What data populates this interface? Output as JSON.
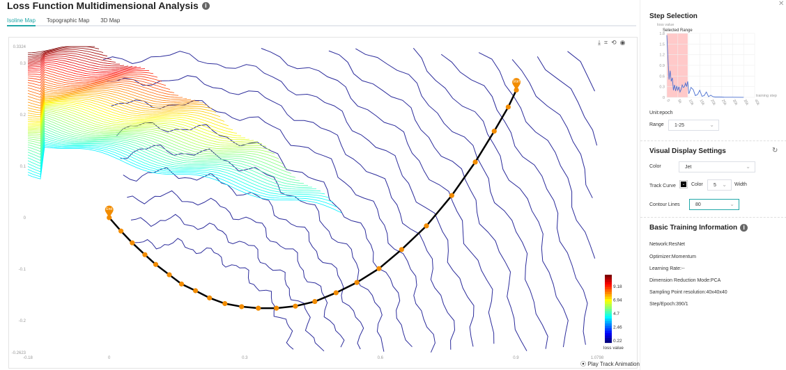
{
  "title": "Loss Function Multidimensional Analysis",
  "tabs": [
    {
      "label": "Isoline Map",
      "active": true
    },
    {
      "label": "Topographic Map"
    },
    {
      "label": "3D Map"
    }
  ],
  "toolbar_icons": [
    "download-icon",
    "crop-icon",
    "restore-icon",
    "eye-icon"
  ],
  "play_label": "Play Track Animation",
  "colors": {
    "accent": "#20a7a8",
    "contour_low": "#2828a0",
    "track": "#000000",
    "marker": "#f28c00",
    "selected_range": "#ffc9c9"
  },
  "chart_data": {
    "type": "contour",
    "xlim": [
      -0.18,
      1.0798
    ],
    "ylim": [
      -0.2623,
      0.3324
    ],
    "x_ticks": [
      "-0.18",
      "0",
      "0.3",
      "0.6",
      "0.9",
      "1.0798"
    ],
    "y_ticks": [
      "0.3324",
      "0.3",
      "0.2",
      "0.1",
      "0",
      "-0.1",
      "-0.2",
      "-0.2623"
    ],
    "colormap": "Jet",
    "colorbar": {
      "ticks": [
        "9.18",
        "6.94",
        "4.7",
        "2.46",
        "0.22"
      ],
      "label": "loss value",
      "range": [
        0.22,
        11.42
      ]
    },
    "contour_lines": 80,
    "track": {
      "start_label": "Start",
      "end_label": "End",
      "points": [
        [
          0.901,
          0.248
        ],
        [
          0.883,
          0.215
        ],
        [
          0.852,
          0.168
        ],
        [
          0.81,
          0.108
        ],
        [
          0.758,
          0.043
        ],
        [
          0.702,
          -0.016
        ],
        [
          0.647,
          -0.062
        ],
        [
          0.597,
          -0.099
        ],
        [
          0.548,
          -0.126
        ],
        [
          0.502,
          -0.146
        ],
        [
          0.455,
          -0.163
        ],
        [
          0.412,
          -0.172
        ],
        [
          0.37,
          -0.176
        ],
        [
          0.33,
          -0.176
        ],
        [
          0.293,
          -0.173
        ],
        [
          0.256,
          -0.167
        ],
        [
          0.222,
          -0.156
        ],
        [
          0.191,
          -0.142
        ],
        [
          0.16,
          -0.129
        ],
        [
          0.133,
          -0.111
        ],
        [
          0.103,
          -0.091
        ],
        [
          0.079,
          -0.072
        ],
        [
          0.051,
          -0.049
        ],
        [
          0.026,
          -0.026
        ],
        [
          0,
          0
        ]
      ]
    }
  },
  "step_selection": {
    "title": "Step Selection",
    "chart": {
      "type": "line",
      "ylabel": "loss value",
      "xlabel": "training step",
      "selected_label": "Selected Range",
      "y_ticks": [
        "1.8",
        "1.5",
        "1.2",
        "0.9",
        "0.6",
        "0.3",
        "0"
      ],
      "x_ticks": [
        "0",
        "5k",
        "10k",
        "15k",
        "20k",
        "25k",
        "30k",
        "35k",
        "40k"
      ],
      "ylim": [
        0,
        1.8
      ],
      "xlim": [
        0,
        40000
      ],
      "selected_range": [
        0,
        9500
      ],
      "x": [
        0,
        500,
        1000,
        1500,
        2000,
        2500,
        3000,
        3500,
        4000,
        4500,
        5000,
        5500,
        6000,
        6500,
        7000,
        7500,
        8000,
        8500,
        9000,
        9500,
        10000,
        10500,
        11000,
        12000,
        13000,
        14000,
        15000,
        16000,
        17000,
        18000,
        19000,
        20000,
        21000,
        22000,
        24000,
        26000,
        30000,
        35000
      ],
      "y": [
        1.75,
        1.1,
        0.5,
        0.75,
        0.45,
        0.55,
        0.2,
        0.35,
        0.18,
        0.32,
        0.2,
        0.3,
        0.15,
        0.22,
        0.35,
        0.28,
        0.3,
        0.4,
        0.3,
        0.45,
        0.1,
        0.18,
        0.28,
        0.22,
        0.05,
        0.08,
        0.2,
        0.03,
        0.05,
        0.15,
        0.02,
        0.06,
        0.02,
        0.01,
        0.01,
        0.005,
        0.003,
        0.002
      ]
    },
    "unit_label": "Unit:epoch",
    "range_label": "Range",
    "range_value": "1-25"
  },
  "visual": {
    "title": "Visual Display Settings",
    "color_label": "Color",
    "color_value": "Jet",
    "track_label": "Track Curve",
    "track_color_label": "Color",
    "width_value": "5",
    "width_label": "Width",
    "contour_label": "Contour Lines",
    "contour_value": "80"
  },
  "basic": {
    "title": "Basic Training Information",
    "items": [
      "Network:ResNet",
      "Optimizer:Momentum",
      "Learning Rate:--",
      "Dimension Reduction Mode:PCA",
      "Sampling Point resolution:40x40x40",
      "Step/Epoch:390/1"
    ]
  }
}
